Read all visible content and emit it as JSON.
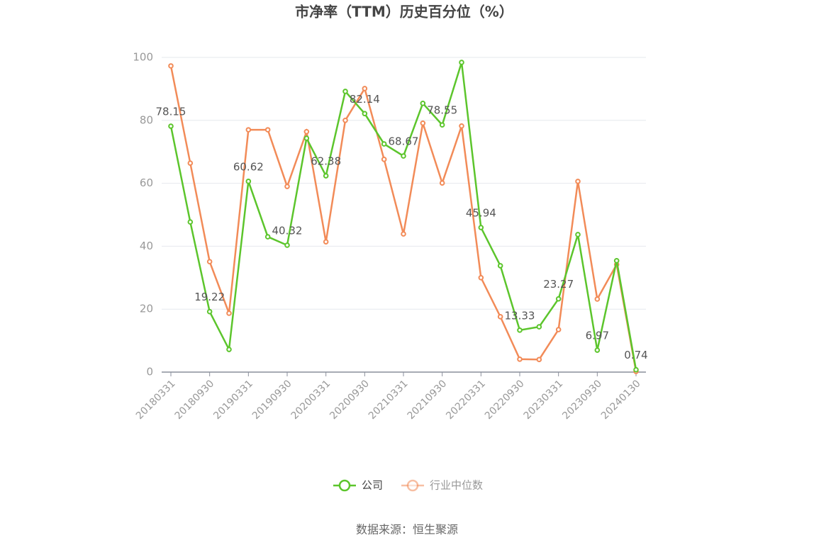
{
  "chart_data": {
    "type": "line",
    "title": "市净率（TTM）历史百分位（%）",
    "source": "数据来源：恒生聚源",
    "categories": [
      "20180331",
      null,
      "20180930",
      null,
      "20190331",
      null,
      "20190930",
      null,
      "20200331",
      null,
      "20200930",
      null,
      "20210331",
      null,
      "20210930",
      null,
      "20220331",
      null,
      "20220930",
      null,
      "20230331",
      null,
      "20230930",
      null,
      "20240130"
    ],
    "series": [
      {
        "name": "公司",
        "color": "#5cc52c",
        "values": [
          78.15,
          47.7,
          19.22,
          7.2,
          60.62,
          43.0,
          40.32,
          74.3,
          62.38,
          89.2,
          82.14,
          72.5,
          68.67,
          85.4,
          78.55,
          98.4,
          45.94,
          33.8,
          13.33,
          14.4,
          23.27,
          43.7,
          6.97,
          35.4,
          0.74
        ]
      },
      {
        "name": "行业中位数",
        "color": "#f28b58",
        "values": [
          97.3,
          66.4,
          35.1,
          18.7,
          77.0,
          77.0,
          59.0,
          76.4,
          41.4,
          80.0,
          90.1,
          67.6,
          43.9,
          79.1,
          60.1,
          78.2,
          30.0,
          17.6,
          4.1,
          4.0,
          13.5,
          60.6,
          23.2,
          34.2,
          0.2
        ]
      }
    ],
    "ylim": [
      0,
      100
    ],
    "yticks": [
      0,
      20,
      40,
      60,
      80,
      100
    ],
    "grid": true
  }
}
